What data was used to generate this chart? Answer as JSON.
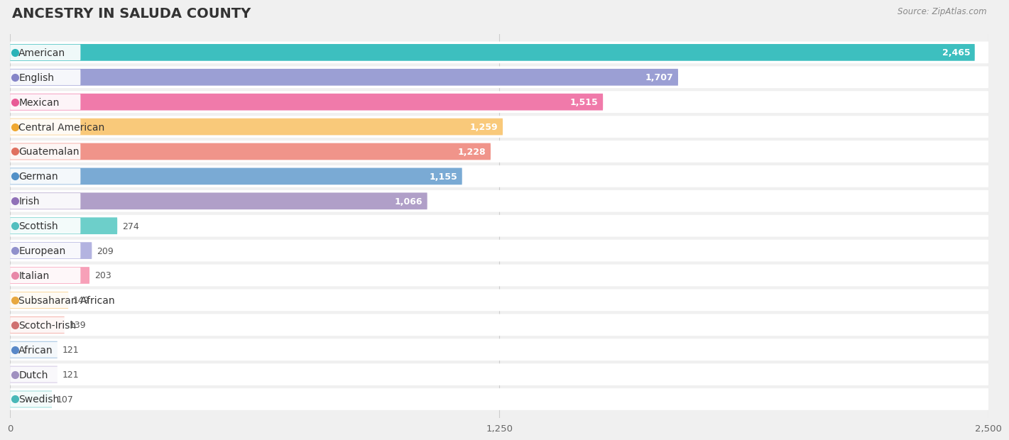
{
  "title": "ANCESTRY IN SALUDA COUNTY",
  "source": "Source: ZipAtlas.com",
  "categories": [
    "American",
    "English",
    "Mexican",
    "Central American",
    "Guatemalan",
    "German",
    "Irish",
    "Scottish",
    "European",
    "Italian",
    "Subsaharan African",
    "Scotch-Irish",
    "African",
    "Dutch",
    "Swedish"
  ],
  "values": [
    2465,
    1707,
    1515,
    1259,
    1228,
    1155,
    1066,
    274,
    209,
    203,
    149,
    139,
    121,
    121,
    107
  ],
  "bar_colors": [
    "#3dbfbf",
    "#9b9fd4",
    "#f07aaa",
    "#f9c97a",
    "#f0948a",
    "#7aaad4",
    "#b09fc8",
    "#6dcfca",
    "#b3b3e0",
    "#f7a0b8",
    "#f9c97a",
    "#f0948a",
    "#7aaad4",
    "#c0b0d8",
    "#6dcfca"
  ],
  "dot_colors": [
    "#2ab3b8",
    "#8585c8",
    "#e85a96",
    "#f0a830",
    "#e07060",
    "#5090c8",
    "#9070b8",
    "#50bfbf",
    "#9090cc",
    "#e888a8",
    "#e8a840",
    "#d07070",
    "#5888c8",
    "#a090c0",
    "#48b8b8"
  ],
  "xlim": [
    0,
    2500
  ],
  "xticks": [
    0,
    1250,
    2500
  ],
  "background_color": "#f0f0f0",
  "row_bg_color": "#ffffff",
  "title_fontsize": 14,
  "label_fontsize": 10,
  "value_fontsize": 9
}
